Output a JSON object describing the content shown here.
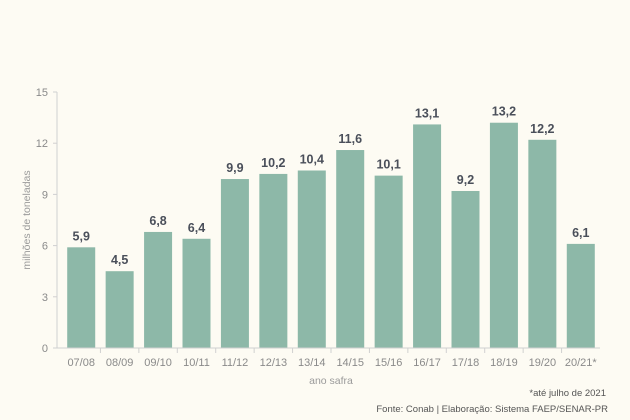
{
  "chart_data": {
    "type": "bar",
    "categories": [
      "07/08",
      "08/09",
      "09/10",
      "10/11",
      "11/12",
      "12/13",
      "13/14",
      "14/15",
      "15/16",
      "16/17",
      "17/18",
      "18/19",
      "19/20",
      "20/21*"
    ],
    "values": [
      5.9,
      4.5,
      6.8,
      6.4,
      9.9,
      10.2,
      10.4,
      11.6,
      10.1,
      13.1,
      9.2,
      13.2,
      12.2,
      6.1
    ],
    "value_labels": [
      "5,9",
      "4,5",
      "6,8",
      "6,4",
      "9,9",
      "10,2",
      "10,4",
      "11,6",
      "10,1",
      "13,1",
      "9,2",
      "13,2",
      "12,2",
      "6,1"
    ],
    "xlabel": "ano safra",
    "ylabel": "milhões de toneladas",
    "ylim": [
      0,
      15
    ],
    "yticks": [
      0,
      3,
      6,
      9,
      12,
      15
    ],
    "grid": false,
    "bar_color": "#8db8a8"
  },
  "footnote": "*até julho de 2021",
  "source": "Fonte: Conab  |  Elaboração: Sistema FAEP/SENAR-PR"
}
